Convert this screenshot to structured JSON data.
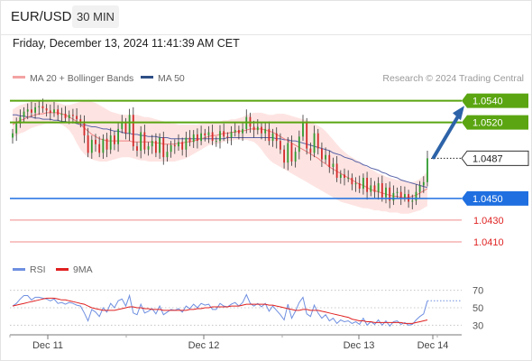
{
  "header": {
    "pair": "EUR/USD",
    "timeframe": "30 MIN",
    "datetime": "Friday, December 13, 2024 11:41:39 AM CET"
  },
  "legend": {
    "ma20": "MA 20 + Bollinger Bands",
    "ma50": "MA 50",
    "credit": "Research © 2024 Trading Central",
    "rsi": "RSI",
    "rsi_ma": "9MA"
  },
  "colors": {
    "resistance": "#5aa511",
    "support": "#1f6fe0",
    "support_red": "#e02424",
    "current": "#222222",
    "ma20": "#ef8080",
    "bollinger_fill": "#fde4e2",
    "ma50": "#5a64a8",
    "candle_up": "#2f9a2f",
    "candle_down": "#d22a2a",
    "arrow": "#2d63a8",
    "rsi": "#6f8fe0",
    "rsi_ma": "#e02020"
  },
  "chart_data": [
    {
      "type": "candlestick",
      "instrument": "EUR/USD",
      "timeframe": "30 MIN",
      "x_ticks": [
        "Dec 11",
        "Dec 12",
        "Dec 13",
        "Dec 14"
      ],
      "ylim": [
        1.04,
        1.0548
      ],
      "levels": [
        {
          "value": 1.054,
          "label": "1.0540",
          "kind": "resistance"
        },
        {
          "value": 1.052,
          "label": "1.0520",
          "kind": "resistance"
        },
        {
          "value": 1.0487,
          "label": "1.0487",
          "kind": "current"
        },
        {
          "value": 1.045,
          "label": "1.0450",
          "kind": "support"
        },
        {
          "value": 1.043,
          "label": "1.0430",
          "kind": "support-minor"
        },
        {
          "value": 1.041,
          "label": "1.0410",
          "kind": "support-minor"
        }
      ],
      "projection": {
        "from": 1.0487,
        "to": 1.0537
      },
      "close": [
        1.051,
        1.0519,
        1.0525,
        1.053,
        1.0532,
        1.0529,
        1.0534,
        1.0535,
        1.0533,
        1.0531,
        1.0529,
        1.0532,
        1.0527,
        1.0528,
        1.0524,
        1.0527,
        1.0526,
        1.0523,
        1.0521,
        1.0508,
        1.0492,
        1.0504,
        1.05,
        1.0492,
        1.0505,
        1.0495,
        1.0508,
        1.05,
        1.0514,
        1.052,
        1.051,
        1.0527,
        1.0498,
        1.0494,
        1.0511,
        1.0495,
        1.0498,
        1.0503,
        1.0492,
        1.0506,
        1.0488,
        1.0493,
        1.0499,
        1.0498,
        1.0502,
        1.0495,
        1.0506,
        1.0502,
        1.0509,
        1.0503,
        1.051,
        1.0508,
        1.0511,
        1.0503,
        1.0503,
        1.0512,
        1.0507,
        1.0506,
        1.0511,
        1.0513,
        1.051,
        1.0514,
        1.0525,
        1.0516,
        1.0513,
        1.0516,
        1.051,
        1.0514,
        1.0503,
        1.051,
        1.0503,
        1.0495,
        1.0483,
        1.0501,
        1.0484,
        1.0493,
        1.0507,
        1.052,
        1.0496,
        1.0492,
        1.051,
        1.0496,
        1.0486,
        1.049,
        1.0479,
        1.0482,
        1.0469,
        1.0472,
        1.0469,
        1.0469,
        1.0463,
        1.0464,
        1.0459,
        1.0469,
        1.0456,
        1.0462,
        1.0456,
        1.0464,
        1.0451,
        1.046,
        1.0448,
        1.0455,
        1.0456,
        1.0451,
        1.0454,
        1.0447,
        1.0448,
        1.0456,
        1.0462,
        1.0465,
        1.0487
      ],
      "ma20": [
        1.0518,
        1.052,
        1.0522,
        1.0523,
        1.0525,
        1.0526,
        1.0527,
        1.0528,
        1.0528,
        1.0529,
        1.0529,
        1.0529,
        1.0529,
        1.0528,
        1.0527,
        1.0525,
        1.0523,
        1.0521,
        1.0518,
        1.0515,
        1.0512,
        1.0509,
        1.0507,
        1.0505,
        1.0504,
        1.0503,
        1.0503,
        1.0503,
        1.0503,
        1.0503,
        1.0503,
        1.0503,
        1.0502,
        1.0502,
        1.0502,
        1.0502,
        1.0502,
        1.0502,
        1.0501,
        1.0501,
        1.05,
        1.05,
        1.05,
        1.05,
        1.0501,
        1.0501,
        1.0502,
        1.0502,
        1.0503,
        1.0504,
        1.0505,
        1.0506,
        1.0507,
        1.0508,
        1.0508,
        1.0509,
        1.051,
        1.051,
        1.0511,
        1.0511,
        1.0512,
        1.0512,
        1.0513,
        1.0514,
        1.0514,
        1.0514,
        1.0514,
        1.0513,
        1.0512,
        1.0511,
        1.0509,
        1.0507,
        1.0505,
        1.0503,
        1.0501,
        1.0499,
        1.0497,
        1.0495,
        1.0493,
        1.0491,
        1.0489,
        1.0487,
        1.0484,
        1.0482,
        1.0479,
        1.0477,
        1.0475,
        1.0473,
        1.0471,
        1.0469,
        1.0467,
        1.0465,
        1.0463,
        1.0462,
        1.046,
        1.0458,
        1.0457,
        1.0456,
        1.0455,
        1.0454,
        1.0453,
        1.0452,
        1.0452,
        1.0451,
        1.0451,
        1.0451,
        1.0452,
        1.0453,
        1.0455,
        1.0457,
        1.0459
      ],
      "bb_upper": [
        1.0532,
        1.0534,
        1.0536,
        1.0537,
        1.0538,
        1.0539,
        1.054,
        1.054,
        1.054,
        1.054,
        1.0539,
        1.0539,
        1.0538,
        1.0537,
        1.0536,
        1.0536,
        1.0537,
        1.0538,
        1.0539,
        1.054,
        1.054,
        1.0539,
        1.0538,
        1.0536,
        1.0534,
        1.0532,
        1.053,
        1.0529,
        1.0528,
        1.0527,
        1.0527,
        1.0527,
        1.0527,
        1.0527,
        1.0526,
        1.0525,
        1.0525,
        1.0524,
        1.0523,
        1.0522,
        1.0521,
        1.052,
        1.0519,
        1.0519,
        1.0518,
        1.0518,
        1.0518,
        1.0518,
        1.0518,
        1.0518,
        1.0519,
        1.0519,
        1.052,
        1.052,
        1.0521,
        1.0521,
        1.0522,
        1.0522,
        1.0523,
        1.0523,
        1.0524,
        1.0525,
        1.0527,
        1.0528,
        1.0529,
        1.0529,
        1.0529,
        1.0528,
        1.0527,
        1.0527,
        1.0528,
        1.0528,
        1.0528,
        1.0527,
        1.0526,
        1.0525,
        1.0524,
        1.0523,
        1.0522,
        1.0521,
        1.0519,
        1.0517,
        1.0515,
        1.0512,
        1.0508,
        1.0504,
        1.05,
        1.0496,
        1.0493,
        1.049,
        1.0488,
        1.0486,
        1.0484,
        1.0481,
        1.0479,
        1.0477,
        1.0475,
        1.0473,
        1.0472,
        1.047,
        1.0469,
        1.0468,
        1.0467,
        1.0467,
        1.0466,
        1.0465,
        1.0465,
        1.0466,
        1.0468,
        1.0471,
        1.0475
      ],
      "bb_lower": [
        1.0506,
        1.0508,
        1.051,
        1.0511,
        1.0513,
        1.0515,
        1.0516,
        1.0517,
        1.0518,
        1.0519,
        1.0519,
        1.0519,
        1.0519,
        1.0518,
        1.0516,
        1.0513,
        1.0508,
        1.0501,
        1.0495,
        1.0491,
        1.0488,
        1.0486,
        1.0485,
        1.0484,
        1.0484,
        1.0484,
        1.0485,
        1.0486,
        1.0487,
        1.0488,
        1.0488,
        1.0488,
        1.0487,
        1.0486,
        1.0485,
        1.0485,
        1.0484,
        1.0484,
        1.0484,
        1.0484,
        1.0484,
        1.0484,
        1.0484,
        1.0484,
        1.0485,
        1.0486,
        1.0487,
        1.0489,
        1.0491,
        1.0493,
        1.0495,
        1.0497,
        1.0499,
        1.05,
        1.05,
        1.0501,
        1.0502,
        1.0503,
        1.0503,
        1.0504,
        1.0504,
        1.0504,
        1.0504,
        1.0503,
        1.0502,
        1.0499,
        1.0495,
        1.049,
        1.0486,
        1.0483,
        1.0481,
        1.0479,
        1.0477,
        1.0475,
        1.0473,
        1.0471,
        1.0469,
        1.0467,
        1.0465,
        1.0463,
        1.0461,
        1.0459,
        1.0457,
        1.0455,
        1.0453,
        1.0451,
        1.0449,
        1.0447,
        1.0446,
        1.0445,
        1.0444,
        1.0443,
        1.0442,
        1.0441,
        1.0441,
        1.044,
        1.0439,
        1.0439,
        1.0438,
        1.0438,
        1.0437,
        1.0437,
        1.0437,
        1.0436,
        1.0436,
        1.0436,
        1.0437,
        1.0438,
        1.0439,
        1.0441,
        1.0443
      ],
      "ma50": [
        1.0527,
        1.0527,
        1.0526,
        1.0526,
        1.0525,
        1.0525,
        1.0524,
        1.0524,
        1.0523,
        1.0523,
        1.0523,
        1.0522,
        1.0522,
        1.0521,
        1.0521,
        1.052,
        1.052,
        1.0519,
        1.0518,
        1.0518,
        1.0517,
        1.0516,
        1.0516,
        1.0515,
        1.0514,
        1.0514,
        1.0513,
        1.0512,
        1.0512,
        1.0511,
        1.051,
        1.051,
        1.0509,
        1.0509,
        1.0508,
        1.0508,
        1.0507,
        1.0507,
        1.0507,
        1.0506,
        1.0506,
        1.0506,
        1.0505,
        1.0505,
        1.0505,
        1.0505,
        1.0505,
        1.0505,
        1.0505,
        1.0505,
        1.0505,
        1.0505,
        1.0505,
        1.0505,
        1.0505,
        1.0505,
        1.0505,
        1.0506,
        1.0506,
        1.0506,
        1.0506,
        1.0506,
        1.0506,
        1.0506,
        1.0506,
        1.0506,
        1.0506,
        1.0506,
        1.0506,
        1.0506,
        1.0505,
        1.0505,
        1.0504,
        1.0504,
        1.0503,
        1.0503,
        1.0502,
        1.0501,
        1.05,
        1.0499,
        1.0498,
        1.0497,
        1.0496,
        1.0495,
        1.0494,
        1.0492,
        1.0491,
        1.049,
        1.0488,
        1.0487,
        1.0486,
        1.0484,
        1.0483,
        1.0481,
        1.048,
        1.0478,
        1.0477,
        1.0476,
        1.0474,
        1.0473,
        1.0471,
        1.047,
        1.0469,
        1.0467,
        1.0466,
        1.0465,
        1.0464,
        1.0463,
        1.0462,
        1.0461,
        1.046
      ]
    },
    {
      "type": "line",
      "name": "RSI",
      "ylim": [
        20,
        80
      ],
      "y_ticks": [
        30,
        50,
        70
      ],
      "series": [
        {
          "name": "RSI",
          "values": [
            52,
            55,
            60,
            64,
            64,
            59,
            62,
            62,
            61,
            60,
            58,
            60,
            55,
            56,
            54,
            56,
            55,
            53,
            52,
            44,
            35,
            48,
            45,
            40,
            50,
            45,
            55,
            50,
            58,
            60,
            52,
            64,
            44,
            42,
            54,
            44,
            46,
            49,
            43,
            52,
            42,
            45,
            48,
            47,
            49,
            45,
            52,
            49,
            54,
            50,
            55,
            53,
            54,
            48,
            48,
            55,
            52,
            51,
            54,
            56,
            52,
            56,
            65,
            55,
            52,
            55,
            51,
            55,
            46,
            52,
            47,
            42,
            36,
            54,
            38,
            46,
            56,
            62,
            43,
            40,
            53,
            44,
            38,
            42,
            35,
            38,
            32,
            36,
            34,
            35,
            32,
            34,
            31,
            38,
            30,
            34,
            31,
            36,
            30,
            35,
            29,
            34,
            35,
            31,
            33,
            30,
            31,
            36,
            40,
            43,
            58
          ]
        },
        {
          "name": "9MA",
          "values": [
            52,
            53,
            54,
            55,
            56,
            57,
            58,
            59,
            60,
            61,
            61,
            61,
            60,
            59,
            59,
            58,
            57,
            56,
            55,
            54,
            52,
            50,
            49,
            48,
            47,
            47,
            47,
            47,
            48,
            49,
            50,
            51,
            51,
            50,
            50,
            49,
            49,
            48,
            48,
            48,
            47,
            47,
            47,
            47,
            47,
            47,
            47,
            48,
            48,
            49,
            49,
            50,
            50,
            51,
            51,
            51,
            51,
            51,
            52,
            52,
            52,
            53,
            54,
            54,
            54,
            54,
            54,
            54,
            53,
            53,
            52,
            51,
            50,
            49,
            48,
            47,
            47,
            48,
            48,
            47,
            47,
            47,
            46,
            45,
            44,
            43,
            42,
            41,
            40,
            39,
            37,
            36,
            35,
            35,
            34,
            34,
            33,
            33,
            33,
            33,
            33,
            33,
            33,
            33,
            32,
            32,
            32,
            33,
            34,
            35,
            36
          ]
        }
      ]
    }
  ]
}
